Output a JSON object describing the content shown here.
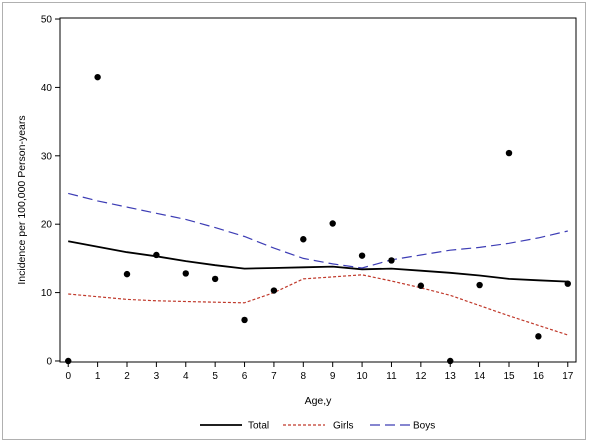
{
  "chart_data": {
    "type": "line",
    "xlabel": "Age,y",
    "ylabel": "Incidence per 100,000 Person-years",
    "xlim": [
      0,
      17
    ],
    "ylim": [
      0,
      50
    ],
    "xticks": [
      0,
      1,
      2,
      3,
      4,
      5,
      6,
      7,
      8,
      9,
      10,
      11,
      12,
      13,
      14,
      15,
      16,
      17
    ],
    "yticks": [
      0,
      10,
      20,
      30,
      40,
      50
    ],
    "grid": false,
    "legend_position": "bottom",
    "x": [
      0,
      1,
      2,
      3,
      4,
      5,
      6,
      7,
      8,
      9,
      10,
      11,
      12,
      13,
      14,
      15,
      16,
      17
    ],
    "scatter": {
      "x": [
        0,
        1,
        2,
        3,
        4,
        5,
        6,
        7,
        8,
        9,
        10,
        11,
        12,
        13,
        14,
        15,
        16,
        17
      ],
      "y": [
        0,
        41.5,
        12.7,
        15.5,
        12.8,
        12.0,
        6.0,
        10.3,
        17.8,
        20.1,
        15.4,
        14.7,
        11.0,
        0,
        11.1,
        30.4,
        3.6,
        11.3
      ],
      "color": "#000000"
    },
    "series": [
      {
        "name": "Total",
        "style": "solid",
        "color": "#000000",
        "values": [
          17.5,
          16.7,
          15.9,
          15.3,
          14.6,
          14.0,
          13.5,
          13.6,
          13.7,
          13.8,
          13.4,
          13.5,
          13.2,
          12.9,
          12.5,
          12.0,
          11.8,
          11.6
        ]
      },
      {
        "name": "Girls",
        "style": "dotted",
        "color": "#c0392b",
        "values": [
          9.8,
          9.4,
          9.0,
          8.8,
          8.7,
          8.6,
          8.5,
          10.0,
          12.0,
          12.3,
          12.6,
          11.7,
          10.7,
          9.6,
          8.1,
          6.6,
          5.2,
          3.8
        ]
      },
      {
        "name": "Boys",
        "style": "dashed",
        "color": "#3d3db5",
        "values": [
          24.5,
          23.4,
          22.5,
          21.6,
          20.7,
          19.5,
          18.2,
          16.5,
          15.0,
          14.2,
          13.6,
          14.8,
          15.5,
          16.2,
          16.6,
          17.2,
          18.0,
          19.0
        ]
      }
    ]
  }
}
